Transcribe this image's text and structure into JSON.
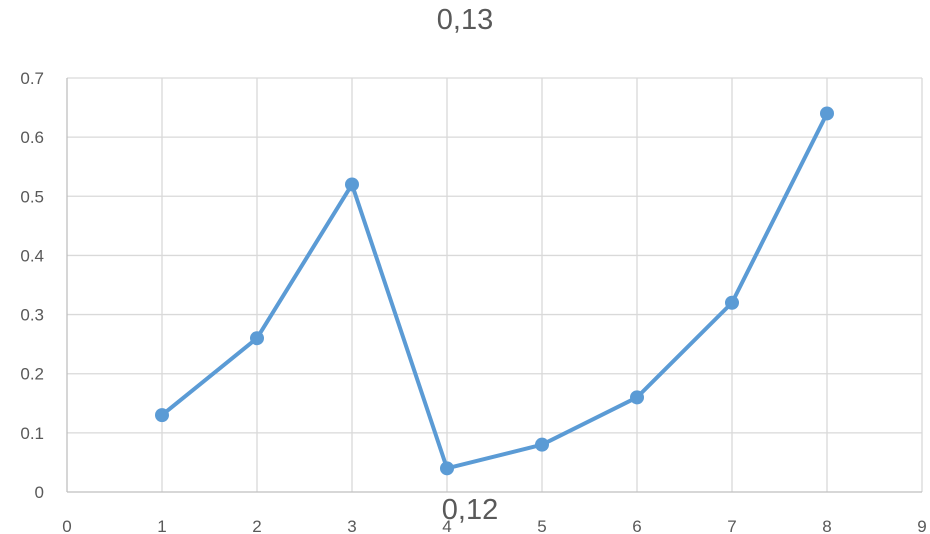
{
  "title": "0,13",
  "secondary_title": "0,12",
  "colors": {
    "series": "#5b9bd5",
    "grid": "#d9d9d9",
    "axis": "#bfbfbf",
    "text": "#595959"
  },
  "chart_data": {
    "type": "scatter",
    "title": "0,13",
    "xlabel": "",
    "ylabel": "",
    "xlim": [
      0,
      9
    ],
    "ylim": [
      0,
      0.7
    ],
    "x_ticks": [
      "0",
      "1",
      "2",
      "3",
      "4",
      "5",
      "6",
      "7",
      "8",
      "9"
    ],
    "y_ticks": [
      "0",
      "0.1",
      "0.2",
      "0.3",
      "0.4",
      "0.5",
      "0.6",
      "0.7"
    ],
    "grid": true,
    "legend": "none",
    "series": [
      {
        "x": [
          1,
          2,
          3,
          4,
          5,
          6,
          7,
          8
        ],
        "y": [
          0.13,
          0.26,
          0.52,
          0.04,
          0.08,
          0.16,
          0.32,
          0.64
        ]
      }
    ]
  }
}
